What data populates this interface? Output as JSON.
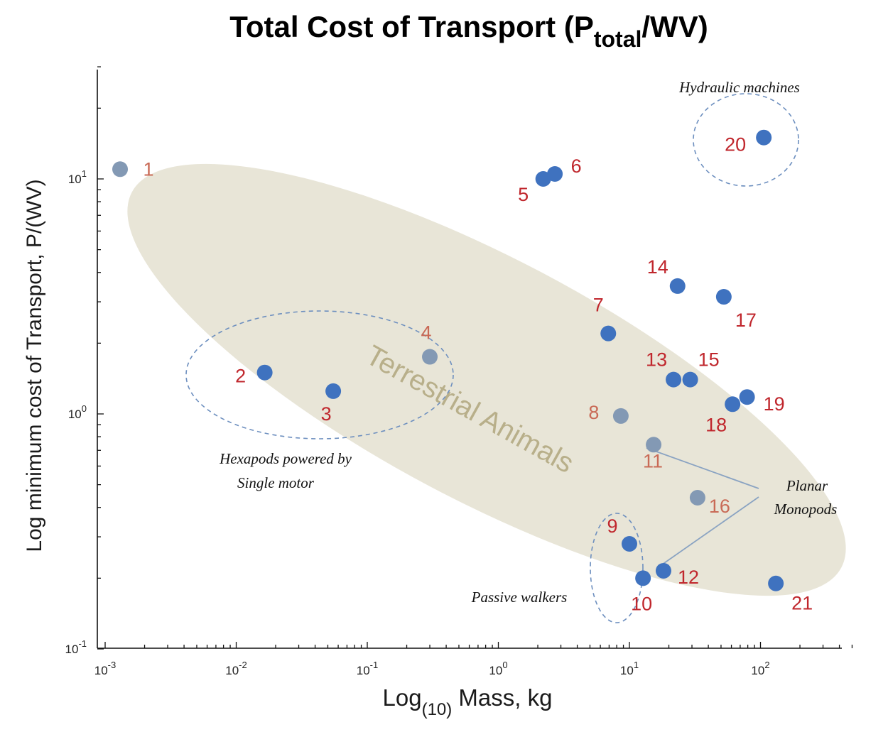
{
  "chart_data": {
    "type": "scatter",
    "title": {
      "main": "Total Cost of Transport (P",
      "sub": "total",
      "tail": "/WV)"
    },
    "xlabel": {
      "main": "Log",
      "sub": "(10)",
      "tail": " Mass, kg"
    },
    "ylabel": "Log minimum cost of Transport, P/(WV)",
    "x_scale": "log",
    "y_scale": "log",
    "xlim": [
      0.001,
      500
    ],
    "ylim": [
      0.1,
      30
    ],
    "x_ticks": [
      {
        "value": 0.001,
        "base": "10",
        "exp": "-3"
      },
      {
        "value": 0.01,
        "base": "10",
        "exp": "-2"
      },
      {
        "value": 0.1,
        "base": "10",
        "exp": "-1"
      },
      {
        "value": 1,
        "base": "10",
        "exp": "0"
      },
      {
        "value": 10,
        "base": "10",
        "exp": "1"
      },
      {
        "value": 100,
        "base": "10",
        "exp": "2"
      }
    ],
    "y_ticks": [
      {
        "value": 0.1,
        "base": "10",
        "exp": "-1"
      },
      {
        "value": 1,
        "base": "10",
        "exp": "0"
      },
      {
        "value": 10,
        "base": "10",
        "exp": "1"
      }
    ],
    "point_color": "#3f72bf",
    "muted_point_color": "#8399b4",
    "label_color": "#c0272d",
    "muted_label_color": "#c96a56",
    "points": [
      {
        "id": "1",
        "x": 0.0013,
        "y": 11.0,
        "muted": true
      },
      {
        "id": "2",
        "x": 0.0165,
        "y": 1.5
      },
      {
        "id": "3",
        "x": 0.055,
        "y": 1.25
      },
      {
        "id": "4",
        "x": 0.3,
        "y": 1.75,
        "muted": true
      },
      {
        "id": "5",
        "x": 2.2,
        "y": 10.0
      },
      {
        "id": "6",
        "x": 2.7,
        "y": 10.5
      },
      {
        "id": "7",
        "x": 6.9,
        "y": 2.2
      },
      {
        "id": "8",
        "x": 8.6,
        "y": 0.98,
        "muted": true
      },
      {
        "id": "9",
        "x": 10.0,
        "y": 0.28
      },
      {
        "id": "10",
        "x": 12.7,
        "y": 0.2
      },
      {
        "id": "11",
        "x": 15.3,
        "y": 0.74,
        "muted": true
      },
      {
        "id": "12",
        "x": 18.2,
        "y": 0.215
      },
      {
        "id": "13",
        "x": 21.7,
        "y": 1.4
      },
      {
        "id": "14",
        "x": 23.3,
        "y": 3.5
      },
      {
        "id": "15",
        "x": 29.1,
        "y": 1.4
      },
      {
        "id": "16",
        "x": 33.1,
        "y": 0.44,
        "muted": true
      },
      {
        "id": "17",
        "x": 52.5,
        "y": 3.15
      },
      {
        "id": "18",
        "x": 61.2,
        "y": 1.1
      },
      {
        "id": "19",
        "x": 79.0,
        "y": 1.18
      },
      {
        "id": "20",
        "x": 106.0,
        "y": 15.0
      },
      {
        "id": "21",
        "x": 131.0,
        "y": 0.19
      }
    ],
    "region_label": "Terrestrial Animals",
    "region_color": "#e8e5d7",
    "annotations": {
      "hydraulic": "Hydraulic machines",
      "hexapods_line1": "Hexapods powered by",
      "hexapods_line2": "Single motor",
      "passive": "Passive walkers",
      "planar_line1": "Planar",
      "planar_line2": "Monopods"
    }
  }
}
